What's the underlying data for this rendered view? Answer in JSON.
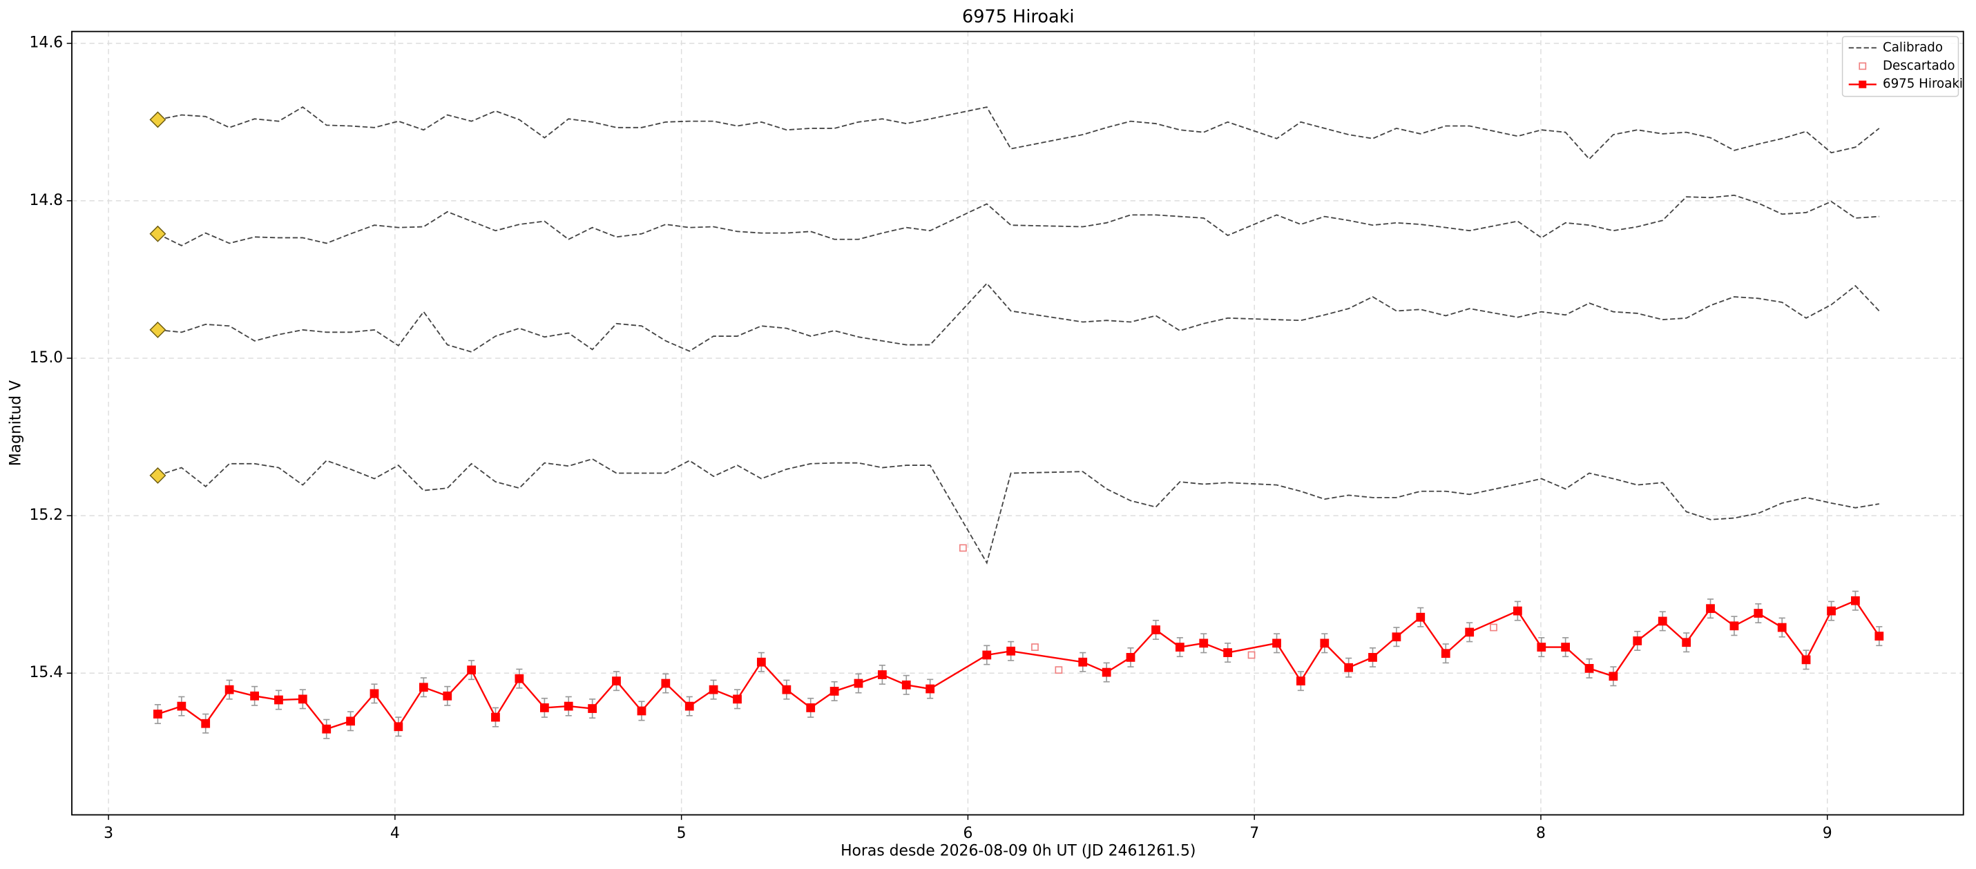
{
  "chart_data": {
    "type": "line",
    "title": "6975 Hiroaki",
    "xlabel": "Horas desde 2026-08-09 0h UT (JD 2461261.5)",
    "ylabel": "Magnitud V",
    "xlim": [
      2.872,
      9.475
    ],
    "ylim": [
      15.58,
      14.585
    ],
    "xticks": [
      3,
      4,
      5,
      6,
      7,
      8,
      9
    ],
    "yticks": [
      14.6,
      14.8,
      {
        "value": 15.0,
        "label": "15.0"
      },
      15.2,
      15.4
    ],
    "grid": true,
    "legend": "upper right",
    "x": [
      3.172,
      3.255,
      3.339,
      3.422,
      3.51,
      3.594,
      3.678,
      3.761,
      3.845,
      3.928,
      4.012,
      4.1,
      4.183,
      4.267,
      4.351,
      4.434,
      4.522,
      4.606,
      4.689,
      4.773,
      4.861,
      4.945,
      5.028,
      5.112,
      5.195,
      5.279,
      5.367,
      5.451,
      5.534,
      5.618,
      5.701,
      5.785,
      5.868,
      6.066,
      6.15,
      6.401,
      6.484,
      6.568,
      6.656,
      6.74,
      6.823,
      6.907,
      7.078,
      7.162,
      7.245,
      7.329,
      7.413,
      7.496,
      7.58,
      7.668,
      7.751,
      7.919,
      8.002,
      8.086,
      8.169,
      8.253,
      8.337,
      8.425,
      8.508,
      8.592,
      8.675,
      8.759,
      8.842,
      8.926,
      9.014,
      9.098,
      9.181
    ],
    "series": [
      {
        "name": "Calibrado",
        "color": "#444444",
        "dashed": true,
        "start_marker_color": "#f2cf3c",
        "values": [
          [
            14.697,
            14.691,
            14.693,
            14.707,
            14.696,
            14.699,
            14.681,
            14.704,
            14.705,
            14.707,
            14.699,
            14.71,
            14.691,
            14.699,
            14.686,
            14.697,
            14.72,
            14.696,
            14.7,
            14.707,
            14.707,
            14.7,
            14.699,
            14.699,
            14.705,
            14.7,
            14.71,
            14.708,
            14.708,
            14.7,
            14.696,
            14.702,
            14.696,
            14.681,
            14.734,
            14.716,
            14.707,
            14.699,
            14.702,
            14.71,
            14.713,
            14.7,
            14.721,
            14.7,
            14.708,
            14.716,
            14.721,
            14.708,
            14.715,
            14.705,
            14.705,
            14.718,
            14.71,
            14.713,
            14.747,
            14.716,
            14.71,
            14.715,
            14.713,
            14.72,
            14.736,
            14.728,
            14.721,
            14.712,
            14.739,
            14.732,
            14.708
          ],
          [
            14.842,
            14.857,
            14.841,
            14.854,
            14.846,
            14.847,
            14.847,
            14.854,
            14.842,
            14.831,
            14.834,
            14.833,
            14.814,
            14.826,
            14.838,
            14.83,
            14.826,
            14.849,
            14.834,
            14.846,
            14.842,
            14.83,
            14.834,
            14.833,
            14.839,
            14.841,
            14.841,
            14.839,
            14.849,
            14.849,
            14.841,
            14.834,
            14.838,
            14.804,
            14.831,
            14.833,
            14.828,
            14.818,
            14.818,
            14.82,
            14.822,
            14.844,
            14.818,
            14.83,
            14.82,
            14.825,
            14.831,
            14.828,
            14.83,
            14.834,
            14.838,
            14.826,
            14.847,
            14.828,
            14.831,
            14.838,
            14.833,
            14.825,
            14.795,
            14.796,
            14.793,
            14.803,
            14.817,
            14.815,
            14.801,
            14.822,
            14.82
          ],
          [
            14.964,
            14.967,
            14.957,
            14.959,
            14.978,
            14.97,
            14.964,
            14.967,
            14.967,
            14.964,
            14.984,
            14.941,
            14.983,
            14.992,
            14.972,
            14.962,
            14.973,
            14.968,
            14.989,
            14.956,
            14.959,
            14.978,
            14.991,
            14.972,
            14.972,
            14.959,
            14.962,
            14.972,
            14.965,
            14.973,
            14.978,
            14.983,
            14.983,
            14.905,
            14.94,
            14.954,
            14.952,
            14.954,
            14.946,
            14.965,
            14.956,
            14.949,
            14.951,
            14.952,
            14.945,
            14.937,
            14.922,
            14.94,
            14.938,
            14.946,
            14.937,
            14.948,
            14.941,
            14.945,
            14.93,
            14.941,
            14.943,
            14.951,
            14.949,
            14.933,
            14.922,
            14.924,
            14.929,
            14.949,
            14.932,
            14.908,
            14.94
          ],
          [
            15.149,
            15.139,
            15.163,
            15.134,
            15.134,
            15.139,
            15.161,
            15.13,
            15.141,
            15.153,
            15.136,
            15.168,
            15.165,
            15.134,
            15.157,
            15.165,
            15.133,
            15.137,
            15.128,
            15.146,
            15.146,
            15.146,
            15.13,
            15.15,
            15.136,
            15.153,
            15.141,
            15.134,
            15.133,
            15.133,
            15.139,
            15.136,
            15.136,
            15.26,
            15.146,
            15.144,
            15.166,
            15.181,
            15.189,
            15.157,
            15.16,
            15.158,
            15.161,
            15.169,
            15.179,
            15.174,
            15.177,
            15.177,
            15.169,
            15.169,
            15.173,
            15.16,
            15.153,
            15.166,
            15.146,
            15.153,
            15.161,
            15.158,
            15.195,
            15.205,
            15.203,
            15.197,
            15.184,
            15.177,
            15.184,
            15.19,
            15.185
          ]
        ]
      },
      {
        "name": "Descartado",
        "color": "#f08080",
        "marker": "open-square",
        "x": [
          5.983,
          6.234,
          6.317,
          6.99,
          7.835
        ],
        "values": [
          15.241,
          15.367,
          15.396,
          15.377,
          15.342
        ]
      },
      {
        "name": "6975 Hiroaki",
        "color": "#ff0000",
        "marker": "square",
        "error_color": "#999999",
        "values": [
          15.452,
          15.442,
          15.464,
          15.421,
          15.429,
          15.434,
          15.433,
          15.471,
          15.461,
          15.426,
          15.468,
          15.418,
          15.429,
          15.396,
          15.456,
          15.407,
          15.444,
          15.442,
          15.445,
          15.41,
          15.448,
          15.413,
          15.442,
          15.421,
          15.433,
          15.386,
          15.421,
          15.444,
          15.423,
          15.413,
          15.402,
          15.415,
          15.42,
          15.377,
          15.372,
          15.386,
          15.399,
          15.38,
          15.345,
          15.367,
          15.362,
          15.374,
          15.362,
          15.41,
          15.362,
          15.393,
          15.38,
          15.354,
          15.329,
          15.375,
          15.348,
          15.321,
          15.367,
          15.367,
          15.394,
          15.404,
          15.359,
          15.334,
          15.361,
          15.318,
          15.34,
          15.324,
          15.342,
          15.383,
          15.321,
          15.308,
          15.353
        ],
        "errors": [
          0.012,
          0.012,
          0.012,
          0.012,
          0.012,
          0.012,
          0.012,
          0.012,
          0.012,
          0.012,
          0.012,
          0.012,
          0.012,
          0.012,
          0.012,
          0.012,
          0.012,
          0.012,
          0.012,
          0.012,
          0.012,
          0.012,
          0.012,
          0.012,
          0.012,
          0.012,
          0.012,
          0.012,
          0.012,
          0.012,
          0.012,
          0.012,
          0.012,
          0.012,
          0.012,
          0.012,
          0.012,
          0.012,
          0.012,
          0.012,
          0.012,
          0.012,
          0.012,
          0.012,
          0.012,
          0.012,
          0.012,
          0.012,
          0.012,
          0.012,
          0.012,
          0.012,
          0.012,
          0.012,
          0.012,
          0.012,
          0.012,
          0.012,
          0.012,
          0.012,
          0.012,
          0.012,
          0.012,
          0.012,
          0.012,
          0.012,
          0.012
        ]
      }
    ]
  }
}
